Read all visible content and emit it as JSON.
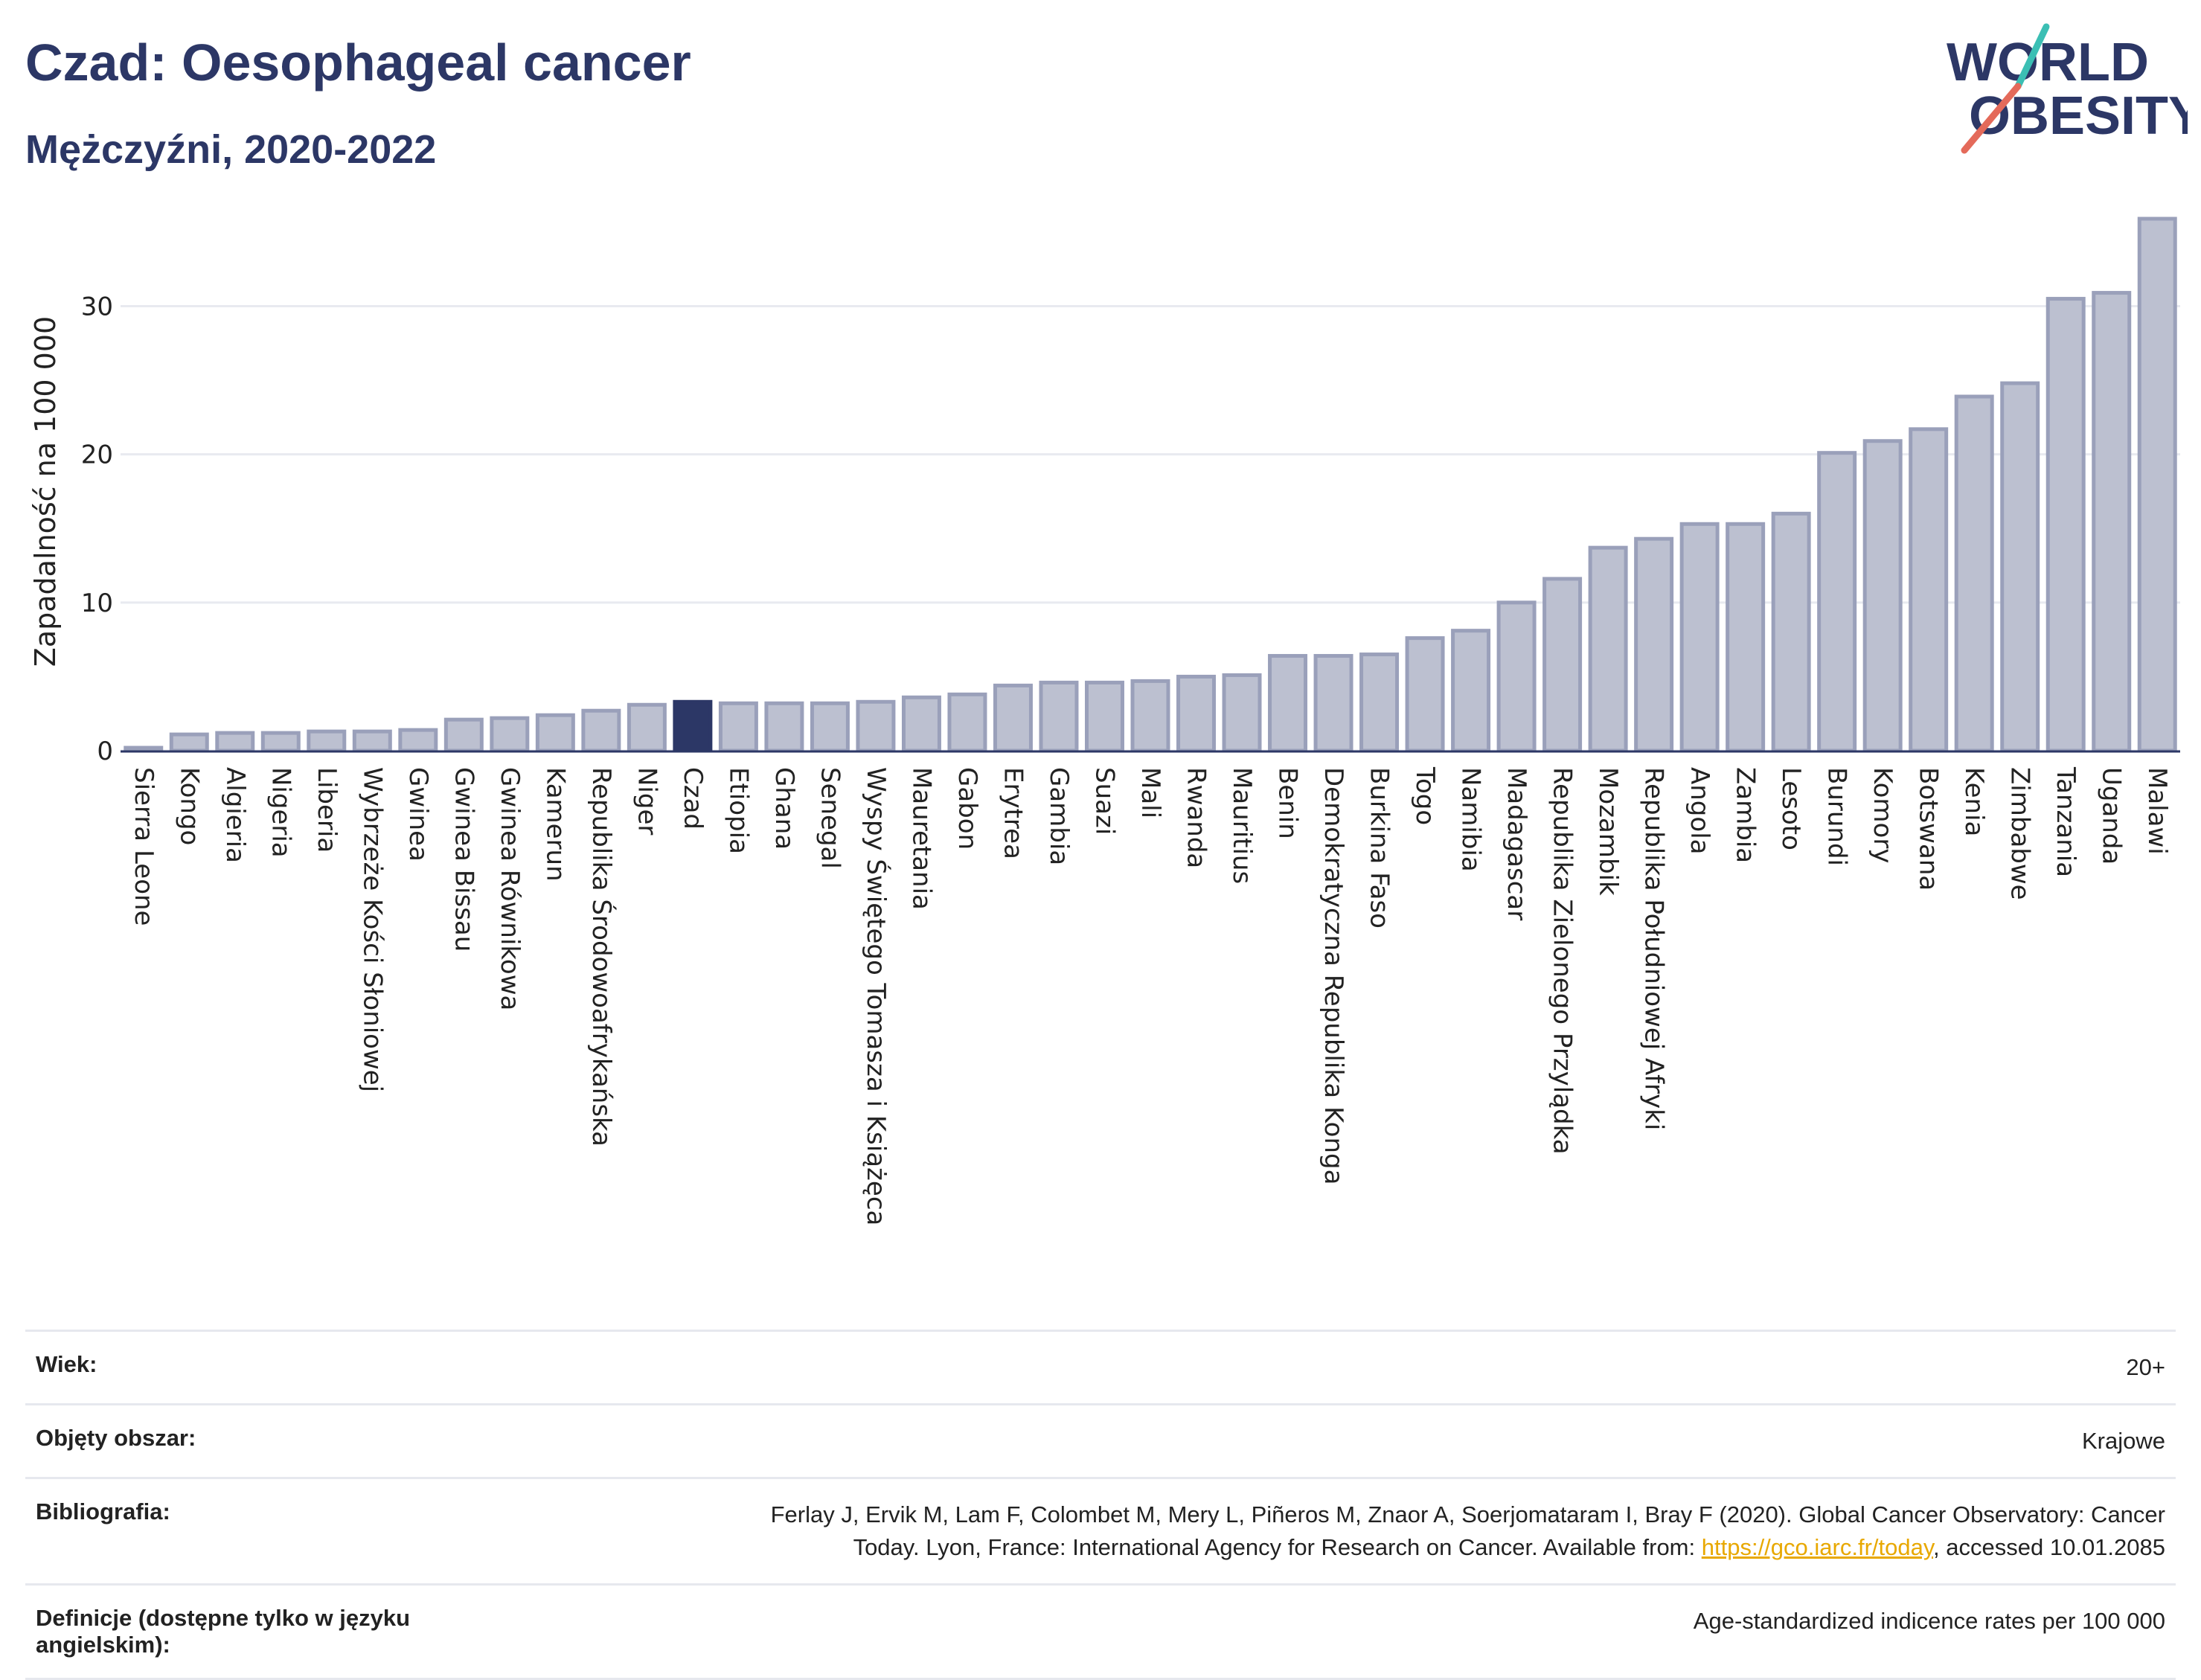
{
  "header": {
    "title": "Czad: Oesophageal cancer",
    "subtitle": "Mężczyźni, 2020-2022"
  },
  "logo": {
    "line1": "WORLD",
    "line2": "OBESITY"
  },
  "chart_data": {
    "type": "bar",
    "ylabel": "Zapadalność na 100 000",
    "ylim": [
      0,
      36
    ],
    "yticks": [
      0,
      10,
      20,
      30
    ],
    "grid": true,
    "highlight": "Czad",
    "bar_color": "#bcc0d0",
    "bar_edge_color": "#9aa0ba",
    "highlight_color": "#2c3766",
    "categories": [
      "Sierra Leone",
      "Kongo",
      "Algieria",
      "Nigeria",
      "Liberia",
      "Wybrzeże Kości Słoniowej",
      "Gwinea",
      "Gwinea Bissau",
      "Gwinea Równikowa",
      "Kamerun",
      "Republika Środowoafrykańska",
      "Niger",
      "Czad",
      "Etiopia",
      "Ghana",
      "Senegal",
      "Wyspy Świętego Tomasza i Książęca",
      "Mauretania",
      "Gabon",
      "Erytrea",
      "Gambia",
      "Suazi",
      "Mali",
      "Rwanda",
      "Mauritius",
      "Benin",
      "Demokratyczna Republika Konga",
      "Burkina Faso",
      "Togo",
      "Namibia",
      "Madagascar",
      "Republika Zielonego Przylądka",
      "Mozambik",
      "Republika Południowej Afryki",
      "Angola",
      "Zambia",
      "Lesoto",
      "Burundi",
      "Komory",
      "Botswana",
      "Kenia",
      "Zimbabwe",
      "Tanzania",
      "Uganda",
      "Malawi"
    ],
    "values": [
      0.2,
      1.1,
      1.2,
      1.2,
      1.3,
      1.3,
      1.4,
      2.1,
      2.2,
      2.4,
      2.7,
      3.1,
      3.3,
      3.2,
      3.2,
      3.2,
      3.3,
      3.6,
      3.8,
      4.4,
      4.6,
      4.6,
      4.7,
      5.0,
      5.1,
      6.4,
      6.4,
      6.5,
      7.6,
      8.1,
      10.0,
      11.6,
      13.7,
      14.3,
      15.3,
      15.3,
      16.0,
      20.1,
      20.9,
      21.7,
      23.9,
      24.8,
      30.5,
      30.9,
      35.9
    ]
  },
  "meta": {
    "rows": [
      {
        "key": "Wiek:",
        "value": "20+"
      },
      {
        "key": "Objęty obszar:",
        "value": "Krajowe"
      },
      {
        "key": "Bibliografia:",
        "value_line1": "Ferlay J, Ervik M, Lam F, Colombet M, Mery L, Piñeros M, Znaor A, Soerjomataram I, Bray F (2020). Global Cancer Observatory: Cancer",
        "value_pre": "Today. Lyon, France: International Agency for Research on Cancer. Available from: ",
        "link": "https://gco.iarc.fr/today",
        "value_post": ", accessed 10.01.2085"
      },
      {
        "key": "Definicje (dostępne tylko w języku angielskim):",
        "value": "Age-standardized indicence rates per 100 000"
      }
    ]
  }
}
